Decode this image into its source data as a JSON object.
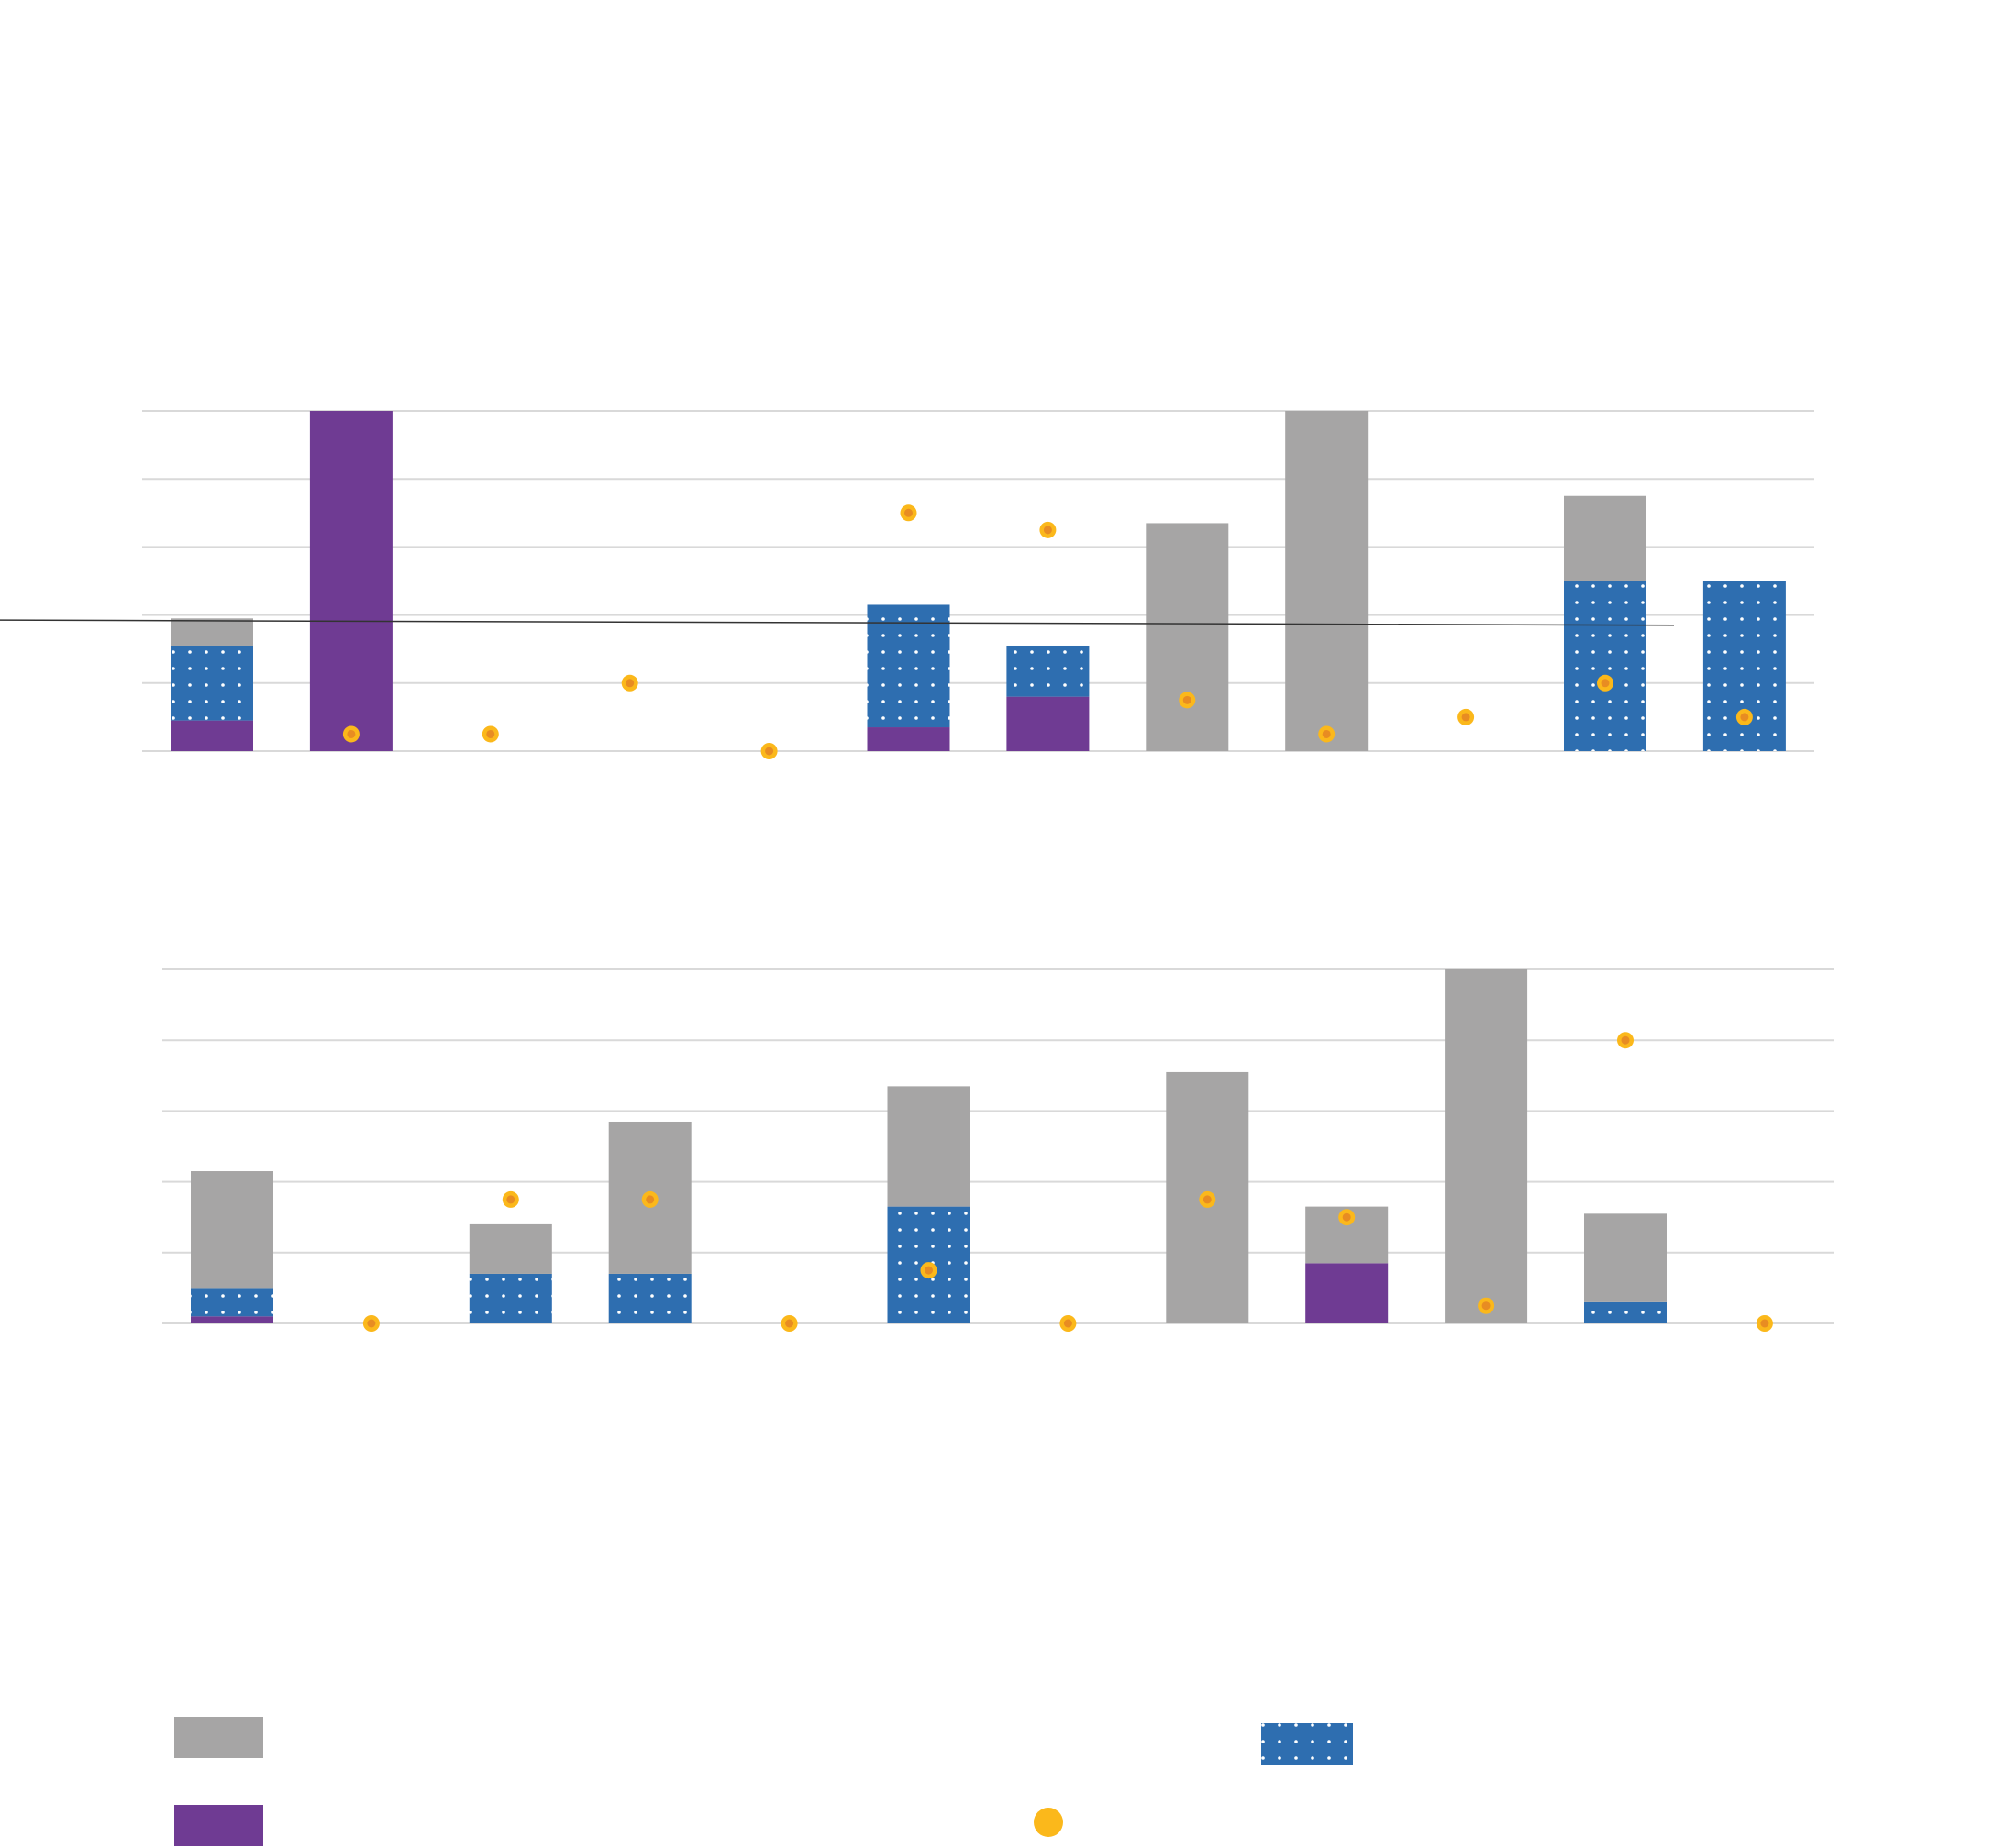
{
  "colors": {
    "gray": "#a6a5a5",
    "purple": "#6f3b93",
    "blue": "#2e6eb0",
    "blue_dot": "#ffffff",
    "marker_outer": "#fbb81b",
    "marker_inner": "#e88c22",
    "gridline": "#d9d9d9",
    "reference_line": "#333333"
  },
  "legend": {
    "entries": [
      {
        "key": "gray",
        "swatch": "gray-rect",
        "label": ""
      },
      {
        "key": "blue",
        "swatch": "blue-dotted-rect",
        "label": ""
      },
      {
        "key": "purple",
        "swatch": "purple-rect",
        "label": ""
      },
      {
        "key": "marker",
        "swatch": "orange-circle",
        "label": ""
      }
    ]
  },
  "chart_data": [
    {
      "type": "bar",
      "stacked": true,
      "overlay": "scatter",
      "title": "",
      "xlabel": "",
      "ylabel": "",
      "ylim": [
        0,
        100
      ],
      "yticks": [
        0,
        20,
        40,
        60,
        80,
        100
      ],
      "grid": true,
      "categories": [
        "",
        "",
        "",
        "",
        "",
        "",
        "",
        "",
        "",
        "",
        "",
        ""
      ],
      "series": [
        {
          "key": "purple",
          "values": [
            9,
            100,
            0,
            0,
            0,
            7,
            16,
            0,
            0,
            0,
            0,
            0
          ]
        },
        {
          "key": "blue",
          "values": [
            22,
            0,
            0,
            0,
            0,
            36,
            15,
            0,
            0,
            0,
            50,
            50
          ]
        },
        {
          "key": "gray",
          "values": [
            8,
            0,
            0,
            0,
            0,
            0,
            0,
            67,
            100,
            0,
            25,
            0
          ]
        }
      ],
      "markers": [
        null,
        5,
        5,
        20,
        0,
        70,
        65,
        15,
        5,
        10,
        20,
        10
      ],
      "reference_line": {
        "y_start": 38.5,
        "y_end": 37
      }
    },
    {
      "type": "bar",
      "stacked": true,
      "overlay": "scatter",
      "title": "",
      "xlabel": "",
      "ylabel": "",
      "ylim": [
        0,
        100
      ],
      "yticks": [
        0,
        20,
        40,
        60,
        80,
        100
      ],
      "grid": true,
      "categories": [
        "",
        "",
        "",
        "",
        "",
        "",
        "",
        "",
        "",
        "",
        "",
        ""
      ],
      "series": [
        {
          "key": "purple",
          "values": [
            2,
            0,
            0,
            0,
            0,
            0,
            0,
            0,
            17,
            0,
            0,
            0
          ]
        },
        {
          "key": "blue",
          "values": [
            8,
            0,
            14,
            14,
            0,
            33,
            0,
            0,
            0,
            0,
            6,
            0
          ]
        },
        {
          "key": "gray",
          "values": [
            33,
            0,
            14,
            43,
            0,
            34,
            0,
            71,
            16,
            100,
            25,
            0
          ]
        }
      ],
      "markers": [
        null,
        0,
        35,
        35,
        0,
        15,
        0,
        35,
        30,
        5,
        80,
        0
      ]
    }
  ]
}
